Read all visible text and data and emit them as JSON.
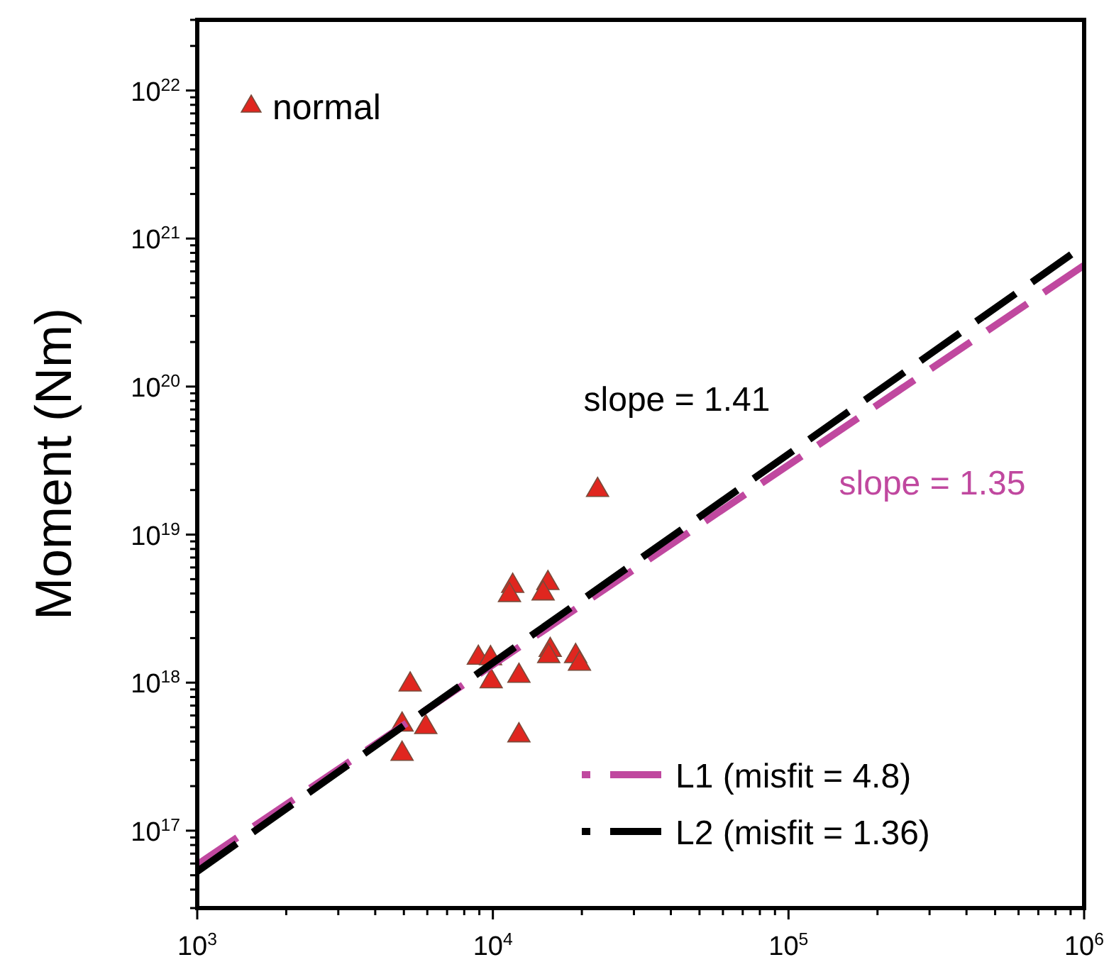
{
  "chart_data": {
    "type": "scatter",
    "ylabel": "Moment (Nm)",
    "log": "xy",
    "xlim": [
      1000,
      1000000
    ],
    "ylim": [
      3e+16,
      3e+22
    ],
    "xticks": [
      {
        "value": 1000,
        "label": "10$^{3}$"
      },
      {
        "value": 2000,
        "label": null
      },
      {
        "value": 3000,
        "label": null
      },
      {
        "value": 4000,
        "label": null
      },
      {
        "value": 5000,
        "label": null
      },
      {
        "value": 6000,
        "label": null
      },
      {
        "value": 7000,
        "label": null
      },
      {
        "value": 8000,
        "label": null
      },
      {
        "value": 9000,
        "label": null
      },
      {
        "value": 10000,
        "label": "10$^{4}$"
      },
      {
        "value": 20000,
        "label": null
      },
      {
        "value": 30000,
        "label": null
      },
      {
        "value": 40000,
        "label": null
      },
      {
        "value": 50000,
        "label": null
      },
      {
        "value": 60000,
        "label": null
      },
      {
        "value": 70000,
        "label": null
      },
      {
        "value": 80000,
        "label": null
      },
      {
        "value": 90000,
        "label": null
      },
      {
        "value": 100000,
        "label": "10$^{5}$"
      },
      {
        "value": 200000,
        "label": null
      },
      {
        "value": 300000,
        "label": null
      },
      {
        "value": 400000,
        "label": null
      },
      {
        "value": 500000,
        "label": null
      },
      {
        "value": 600000,
        "label": null
      },
      {
        "value": 700000,
        "label": null
      },
      {
        "value": 800000,
        "label": null
      },
      {
        "value": 900000,
        "label": null
      },
      {
        "value": 1000000,
        "label": "10$^{6}$"
      }
    ],
    "yticks": [
      {
        "value": 3e+16,
        "label": null
      },
      {
        "value": 4e+16,
        "label": null
      },
      {
        "value": 5e+16,
        "label": null
      },
      {
        "value": 6e+16,
        "label": null
      },
      {
        "value": 7e+16,
        "label": null
      },
      {
        "value": 8e+16,
        "label": null
      },
      {
        "value": 9e+16,
        "label": null
      },
      {
        "value": 1e+17,
        "label": "10$^{17}$"
      },
      {
        "value": 2e+17,
        "label": null
      },
      {
        "value": 3e+17,
        "label": null
      },
      {
        "value": 4e+17,
        "label": null
      },
      {
        "value": 5e+17,
        "label": null
      },
      {
        "value": 6e+17,
        "label": null
      },
      {
        "value": 7e+17,
        "label": null
      },
      {
        "value": 8e+17,
        "label": null
      },
      {
        "value": 9e+17,
        "label": null
      },
      {
        "value": 1e+18,
        "label": "10$^{18}$"
      },
      {
        "value": 2e+18,
        "label": null
      },
      {
        "value": 3e+18,
        "label": null
      },
      {
        "value": 4e+18,
        "label": null
      },
      {
        "value": 5e+18,
        "label": null
      },
      {
        "value": 6e+18,
        "label": null
      },
      {
        "value": 7e+18,
        "label": null
      },
      {
        "value": 8e+18,
        "label": null
      },
      {
        "value": 9e+18,
        "label": null
      },
      {
        "value": 1e+19,
        "label": "10$^{19}$"
      },
      {
        "value": 2e+19,
        "label": null
      },
      {
        "value": 3e+19,
        "label": null
      },
      {
        "value": 4e+19,
        "label": null
      },
      {
        "value": 5e+19,
        "label": null
      },
      {
        "value": 6e+19,
        "label": null
      },
      {
        "value": 7e+19,
        "label": null
      },
      {
        "value": 8e+19,
        "label": null
      },
      {
        "value": 9e+19,
        "label": null
      },
      {
        "value": 1e+20,
        "label": "10$^{20}$"
      },
      {
        "value": 2e+20,
        "label": null
      },
      {
        "value": 3e+20,
        "label": null
      },
      {
        "value": 4e+20,
        "label": null
      },
      {
        "value": 5e+20,
        "label": null
      },
      {
        "value": 6e+20,
        "label": null
      },
      {
        "value": 7e+20,
        "label": null
      },
      {
        "value": 8e+20,
        "label": null
      },
      {
        "value": 9e+20,
        "label": null
      },
      {
        "value": 1e+21,
        "label": "10$^{21}$"
      },
      {
        "value": 2e+21,
        "label": null
      },
      {
        "value": 3e+21,
        "label": null
      },
      {
        "value": 4e+21,
        "label": null
      },
      {
        "value": 5e+21,
        "label": null
      },
      {
        "value": 6e+21,
        "label": null
      },
      {
        "value": 7e+21,
        "label": null
      },
      {
        "value": 8e+21,
        "label": null
      },
      {
        "value": 9e+21,
        "label": null
      },
      {
        "value": 1e+22,
        "label": "10$^{22}$"
      },
      {
        "value": 2e+22,
        "label": null
      },
      {
        "value": 3e+22,
        "label": null
      }
    ],
    "grid": false,
    "legend": "bottom left",
    "marker": "triangle",
    "series": [
      {
        "name": "normal",
        "color": "#e0261f",
        "x": [
          22600,
          5250,
          4930,
          4930,
          5930,
          8930,
          9820,
          9870,
          12250,
          12250,
          11670,
          11380,
          15350,
          14790,
          15630,
          15450,
          19050,
          19630
        ],
        "values": [
          2e+19,
          9.7e+17,
          5.2e+17,
          3.3e+17,
          5e+17,
          1.47e+18,
          1.46e+18,
          1.02e+18,
          1.11e+18,
          4.4e+17,
          4.5e+18,
          3.9e+18,
          4.7e+18,
          4e+18,
          1.66e+18,
          1.51e+18,
          1.51e+18,
          1.34e+18
        ]
      },
      {
        "name": "L1 (misfit = 4.8)",
        "type": "line",
        "color": "#c0489f",
        "line_style": "dashed",
        "marker": "none",
        "x": [
          1000,
          1000000
        ],
        "values": [
          5.9e+16,
          6.6e+20
        ]
      },
      {
        "name": "L2 (misfit = 1.36)",
        "type": "line",
        "color": "#000000",
        "line_style": "dashed",
        "marker": "none",
        "x": [
          1000,
          1000000
        ],
        "values": [
          5.3e+16,
          9e+20
        ]
      }
    ],
    "annotations": [
      "slope = 1.41",
      "slope = 1.35"
    ]
  }
}
